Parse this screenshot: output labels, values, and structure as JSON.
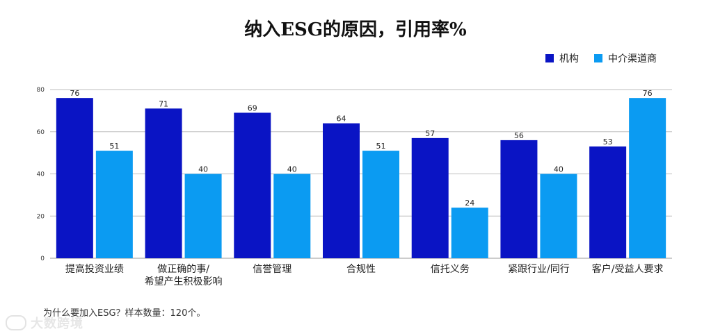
{
  "chart_data": {
    "type": "bar",
    "title": "纳入ESG的原因，引用率%",
    "categories": [
      "提高投资业绩",
      "做正确的事/\n希望产生积极影响",
      "信誉管理",
      "合规性",
      "信托义务",
      "紧跟行业/同行",
      "客户/受益人要求"
    ],
    "series": [
      {
        "name": "机构",
        "color": "#0a14c4",
        "values": [
          76,
          71,
          69,
          64,
          57,
          56,
          53
        ]
      },
      {
        "name": "中介渠道商",
        "color": "#0b9bf2",
        "values": [
          51,
          40,
          40,
          51,
          24,
          40,
          76
        ]
      }
    ],
    "ylim": [
      0,
      80
    ],
    "yticks": [
      0,
      20,
      40,
      60,
      80
    ],
    "grid": true,
    "legend": "top-right"
  },
  "footnote": "为什么要加入ESG？样本数量：120个。",
  "watermark": "大数跨境"
}
